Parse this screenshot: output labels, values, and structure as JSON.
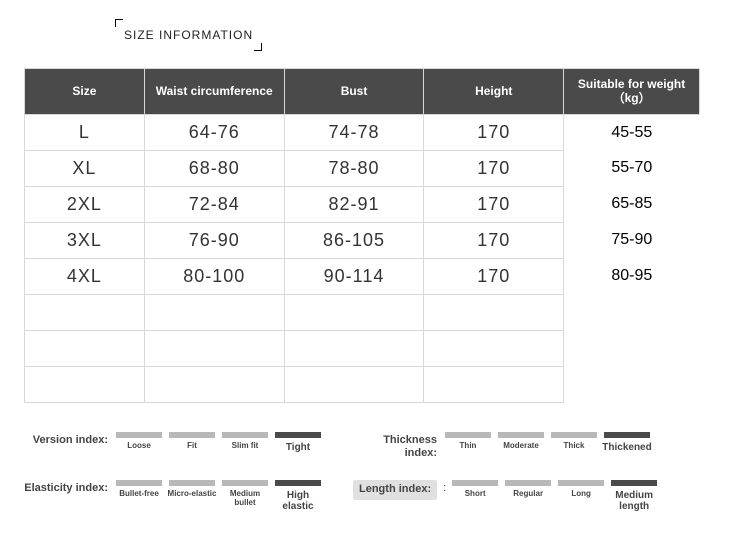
{
  "header": {
    "title": "SIZE INFORMATION"
  },
  "table": {
    "columns": [
      "Size",
      "Waist circumference",
      "Bust",
      "Height",
      "Suitable for weight（kg）"
    ],
    "col_widths": [
      "120px",
      "140px",
      "140px",
      "140px",
      "136px"
    ],
    "header_bg": "#4a4a4a",
    "header_color": "#ffffff",
    "border_color": "#d8d8d8",
    "rows": [
      [
        "L",
        "64-76",
        "74-78",
        "170",
        "45-55"
      ],
      [
        "XL",
        "68-80",
        "78-80",
        "170",
        "55-70"
      ],
      [
        "2XL",
        "72-84",
        "82-91",
        "170",
        "65-85"
      ],
      [
        "3XL",
        "76-90",
        "86-105",
        "170",
        "75-90"
      ],
      [
        "4XL",
        "80-100",
        "90-114",
        "170",
        "80-95"
      ],
      [
        "",
        "",
        "",
        "",
        ""
      ],
      [
        "",
        "",
        "",
        "",
        ""
      ],
      [
        "",
        "",
        "",
        "",
        ""
      ]
    ]
  },
  "indices": {
    "swatch_light": "#b8b8b8",
    "swatch_dark": "#4a4a4a",
    "groups": [
      {
        "label": "Version index:",
        "options": [
          "Loose",
          "Fit",
          "Slim fit",
          "Tight"
        ],
        "selected": 3
      },
      {
        "label": "Thickness index:",
        "options": [
          "Thin",
          "Moderate",
          "Thick",
          "Thickened"
        ],
        "selected": 3
      },
      {
        "label": "Elasticity index:",
        "options": [
          "Bullet-free",
          "Micro-elastic",
          "Medium bullet",
          "High elastic"
        ],
        "selected": 3
      },
      {
        "label": "Length index:",
        "boxed": true,
        "options": [
          "Short",
          "Regular",
          "Long",
          "Medium length"
        ],
        "selected": 3
      }
    ]
  }
}
